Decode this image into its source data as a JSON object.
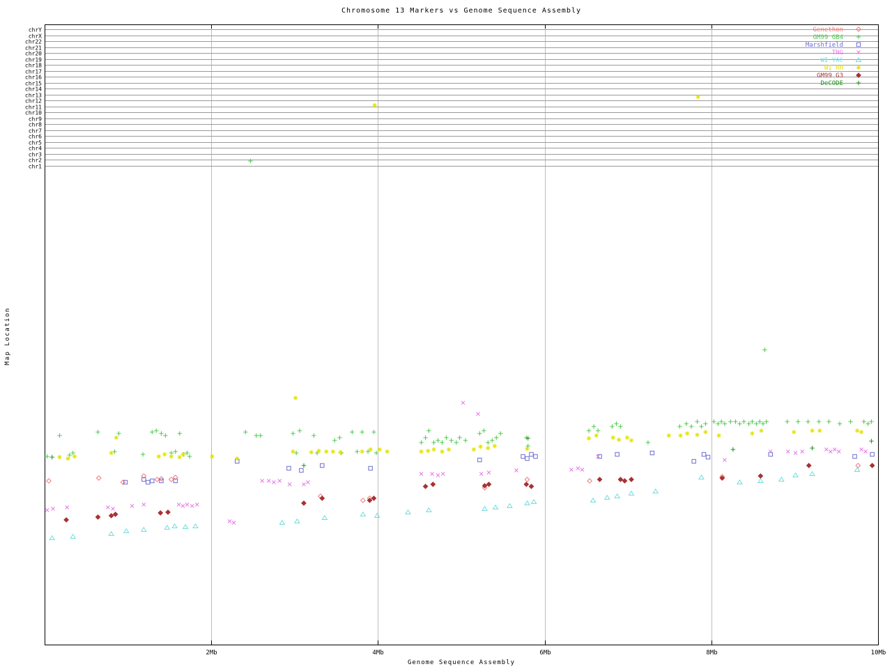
{
  "chart_data": {
    "type": "scatter",
    "title": "Chromosome 13 Markers vs Genome Sequence Assembly",
    "xlabel": "Genome Sequence Assembly",
    "ylabel": "Map Location",
    "xlim": [
      0,
      10
    ],
    "x_ticks": [
      {
        "value": 2,
        "label": "2Mb"
      },
      {
        "value": 4,
        "label": "4Mb"
      },
      {
        "value": 6,
        "label": "6Mb"
      },
      {
        "value": 8,
        "label": "8Mb"
      },
      {
        "value": 10,
        "label": "10Mb"
      }
    ],
    "grid": true,
    "legend_position": "top-right-inside",
    "y_axis": {
      "note": "Map Location axis has no numeric tick labels; chromosome rows chr1..chrY are drawn as horizontal lines at the top of the plot. Point y values are vertical positions on the original 960px-tall screenshot.",
      "chromosome_rows": [
        "chr1",
        "chr2",
        "chr3",
        "chr4",
        "chr5",
        "chr6",
        "chr7",
        "chr8",
        "chr9",
        "chr10",
        "chr11",
        "chr12",
        "chr13",
        "chr14",
        "chr15",
        "chr16",
        "chr17",
        "chr18",
        "chr19",
        "chr20",
        "chr21",
        "chr22",
        "chrX",
        "chrY"
      ]
    },
    "series": [
      {
        "name": "Genethon",
        "marker": "open-diamond",
        "color": "#ee7777",
        "points": [
          [
            0.05,
            690
          ],
          [
            0.65,
            686
          ],
          [
            0.94,
            692
          ],
          [
            1.19,
            683
          ],
          [
            1.35,
            688
          ],
          [
            1.4,
            687
          ],
          [
            1.52,
            688
          ],
          [
            1.57,
            685
          ],
          [
            3.31,
            712
          ],
          [
            3.82,
            718
          ],
          [
            3.9,
            715
          ],
          [
            5.28,
            700
          ],
          [
            5.79,
            688
          ],
          [
            6.54,
            690
          ],
          [
            8.13,
            684
          ],
          [
            9.76,
            668
          ]
        ]
      },
      {
        "name": "GM99 GB4",
        "marker": "plus",
        "color": "#4dc84d",
        "points": [
          [
            0.03,
            655
          ],
          [
            0.18,
            625
          ],
          [
            0.3,
            653
          ],
          [
            0.34,
            650
          ],
          [
            0.64,
            620
          ],
          [
            0.84,
            648
          ],
          [
            0.89,
            622
          ],
          [
            1.18,
            652
          ],
          [
            1.29,
            620
          ],
          [
            1.34,
            618
          ],
          [
            1.4,
            622
          ],
          [
            1.45,
            625
          ],
          [
            1.52,
            650
          ],
          [
            1.57,
            648
          ],
          [
            1.62,
            622
          ],
          [
            1.67,
            652
          ],
          [
            1.71,
            650
          ],
          [
            1.74,
            655
          ],
          [
            2.41,
            620
          ],
          [
            2.47,
            231
          ],
          [
            2.54,
            625
          ],
          [
            2.59,
            625
          ],
          [
            2.98,
            622
          ],
          [
            3.02,
            650
          ],
          [
            3.06,
            618
          ],
          [
            3.23,
            625
          ],
          [
            3.27,
            650
          ],
          [
            3.48,
            632
          ],
          [
            3.54,
            628
          ],
          [
            3.56,
            650
          ],
          [
            3.69,
            620
          ],
          [
            3.75,
            648
          ],
          [
            3.81,
            620
          ],
          [
            3.88,
            648
          ],
          [
            3.95,
            620
          ],
          [
            3.98,
            650
          ],
          [
            4.52,
            635
          ],
          [
            4.57,
            628
          ],
          [
            4.61,
            618
          ],
          [
            4.67,
            635
          ],
          [
            4.72,
            632
          ],
          [
            4.77,
            635
          ],
          [
            4.82,
            628
          ],
          [
            4.88,
            632
          ],
          [
            4.94,
            635
          ],
          [
            4.98,
            628
          ],
          [
            5.05,
            632
          ],
          [
            5.22,
            622
          ],
          [
            5.27,
            618
          ],
          [
            5.32,
            635
          ],
          [
            5.37,
            632
          ],
          [
            5.42,
            628
          ],
          [
            5.47,
            622
          ],
          [
            5.78,
            628
          ],
          [
            5.8,
            640
          ],
          [
            6.53,
            618
          ],
          [
            6.59,
            612
          ],
          [
            6.64,
            618
          ],
          [
            6.81,
            612
          ],
          [
            6.86,
            608
          ],
          [
            6.91,
            612
          ],
          [
            7.24,
            635
          ],
          [
            7.62,
            612
          ],
          [
            7.7,
            608
          ],
          [
            7.76,
            612
          ],
          [
            7.83,
            605
          ],
          [
            7.88,
            612
          ],
          [
            7.93,
            608
          ],
          [
            8.03,
            605
          ],
          [
            8.08,
            608
          ],
          [
            8.12,
            605
          ],
          [
            8.16,
            608
          ],
          [
            8.23,
            605
          ],
          [
            8.29,
            605
          ],
          [
            8.34,
            608
          ],
          [
            8.39,
            605
          ],
          [
            8.45,
            608
          ],
          [
            8.49,
            605
          ],
          [
            8.54,
            608
          ],
          [
            8.58,
            605
          ],
          [
            8.62,
            608
          ],
          [
            8.64,
            502
          ],
          [
            8.66,
            605
          ],
          [
            8.91,
            605
          ],
          [
            9.04,
            605
          ],
          [
            9.16,
            605
          ],
          [
            9.29,
            605
          ],
          [
            9.41,
            605
          ],
          [
            9.54,
            608
          ],
          [
            9.67,
            605
          ],
          [
            9.83,
            605
          ],
          [
            9.88,
            608
          ],
          [
            9.92,
            605
          ]
        ]
      },
      {
        "name": "Marshfield",
        "marker": "open-square",
        "color": "#6b6bd0",
        "points": [
          [
            0.97,
            692
          ],
          [
            1.19,
            688
          ],
          [
            1.24,
            692
          ],
          [
            1.29,
            690
          ],
          [
            1.4,
            690
          ],
          [
            1.57,
            690
          ],
          [
            2.31,
            662
          ],
          [
            2.93,
            672
          ],
          [
            3.08,
            675
          ],
          [
            3.33,
            668
          ],
          [
            3.91,
            672
          ],
          [
            5.22,
            660
          ],
          [
            5.74,
            655
          ],
          [
            5.79,
            658
          ],
          [
            5.84,
            652
          ],
          [
            5.89,
            655
          ],
          [
            6.66,
            655
          ],
          [
            6.87,
            652
          ],
          [
            7.29,
            650
          ],
          [
            7.79,
            662
          ],
          [
            7.91,
            652
          ],
          [
            7.96,
            656
          ],
          [
            8.71,
            652
          ],
          [
            9.72,
            655
          ],
          [
            9.93,
            652
          ]
        ]
      },
      {
        "name": "TNG",
        "marker": "cross",
        "color": "#e878e8",
        "points": [
          [
            0.03,
            732
          ],
          [
            0.1,
            730
          ],
          [
            0.27,
            728
          ],
          [
            0.76,
            728
          ],
          [
            0.82,
            730
          ],
          [
            1.05,
            726
          ],
          [
            1.19,
            724
          ],
          [
            1.61,
            724
          ],
          [
            1.66,
            726
          ],
          [
            1.71,
            724
          ],
          [
            1.77,
            726
          ],
          [
            1.83,
            724
          ],
          [
            2.22,
            748
          ],
          [
            2.27,
            750
          ],
          [
            2.61,
            690
          ],
          [
            2.69,
            690
          ],
          [
            2.75,
            692
          ],
          [
            2.82,
            690
          ],
          [
            2.94,
            695
          ],
          [
            3.11,
            695
          ],
          [
            3.16,
            692
          ],
          [
            4.52,
            680
          ],
          [
            4.65,
            680
          ],
          [
            4.72,
            682
          ],
          [
            4.78,
            680
          ],
          [
            5.02,
            578
          ],
          [
            5.2,
            594
          ],
          [
            5.24,
            680
          ],
          [
            5.33,
            678
          ],
          [
            5.66,
            675
          ],
          [
            6.32,
            674
          ],
          [
            6.4,
            672
          ],
          [
            6.45,
            674
          ],
          [
            6.64,
            655
          ],
          [
            8.16,
            660
          ],
          [
            8.71,
            648
          ],
          [
            8.92,
            648
          ],
          [
            9.01,
            650
          ],
          [
            9.09,
            648
          ],
          [
            9.38,
            645
          ],
          [
            9.43,
            648
          ],
          [
            9.48,
            645
          ],
          [
            9.53,
            648
          ],
          [
            9.8,
            645
          ],
          [
            9.85,
            648
          ]
        ]
      },
      {
        "name": "WI YAC",
        "marker": "open-triangle",
        "color": "#70dede",
        "points": [
          [
            0.09,
            772
          ],
          [
            0.34,
            770
          ],
          [
            0.8,
            766
          ],
          [
            0.98,
            762
          ],
          [
            1.19,
            760
          ],
          [
            1.47,
            757
          ],
          [
            1.56,
            755
          ],
          [
            1.69,
            756
          ],
          [
            1.81,
            755
          ],
          [
            2.85,
            750
          ],
          [
            3.03,
            748
          ],
          [
            3.36,
            743
          ],
          [
            3.82,
            738
          ],
          [
            3.99,
            740
          ],
          [
            4.36,
            735
          ],
          [
            4.61,
            732
          ],
          [
            5.28,
            730
          ],
          [
            5.41,
            728
          ],
          [
            5.58,
            726
          ],
          [
            5.79,
            722
          ],
          [
            5.87,
            720
          ],
          [
            6.58,
            718
          ],
          [
            6.75,
            714
          ],
          [
            6.87,
            712
          ],
          [
            7.04,
            708
          ],
          [
            7.33,
            705
          ],
          [
            7.88,
            685
          ],
          [
            8.34,
            692
          ],
          [
            8.59,
            690
          ],
          [
            8.84,
            688
          ],
          [
            9.01,
            682
          ],
          [
            9.21,
            680
          ],
          [
            9.75,
            674
          ]
        ]
      },
      {
        "name": "WI RH",
        "marker": "asterisk",
        "color": "#e3e300",
        "points": [
          [
            0.18,
            656
          ],
          [
            0.28,
            658
          ],
          [
            0.36,
            655
          ],
          [
            0.8,
            650
          ],
          [
            0.86,
            628
          ],
          [
            1.37,
            655
          ],
          [
            1.44,
            652
          ],
          [
            1.52,
            655
          ],
          [
            1.62,
            656
          ],
          [
            1.66,
            652
          ],
          [
            2.01,
            655
          ],
          [
            2.31,
            658
          ],
          [
            2.98,
            648
          ],
          [
            3.01,
            571
          ],
          [
            3.2,
            649
          ],
          [
            3.29,
            647
          ],
          [
            3.38,
            648
          ],
          [
            3.46,
            648
          ],
          [
            3.55,
            649
          ],
          [
            3.81,
            648
          ],
          [
            3.91,
            645
          ],
          [
            3.96,
            151
          ],
          [
            4.02,
            645
          ],
          [
            4.11,
            648
          ],
          [
            4.52,
            648
          ],
          [
            4.6,
            647
          ],
          [
            4.67,
            645
          ],
          [
            4.77,
            648
          ],
          [
            4.85,
            645
          ],
          [
            5.15,
            645
          ],
          [
            5.23,
            641
          ],
          [
            5.32,
            643
          ],
          [
            5.4,
            640
          ],
          [
            5.79,
            644
          ],
          [
            6.53,
            629
          ],
          [
            6.62,
            625
          ],
          [
            6.82,
            628
          ],
          [
            6.89,
            631
          ],
          [
            6.99,
            628
          ],
          [
            7.04,
            632
          ],
          [
            7.49,
            625
          ],
          [
            7.63,
            625
          ],
          [
            7.71,
            622
          ],
          [
            7.83,
            624
          ],
          [
            7.84,
            139
          ],
          [
            7.93,
            620
          ],
          [
            8.09,
            625
          ],
          [
            8.49,
            622
          ],
          [
            8.6,
            618
          ],
          [
            8.99,
            620
          ],
          [
            9.21,
            618
          ],
          [
            9.3,
            618
          ],
          [
            9.75,
            618
          ],
          [
            9.8,
            620
          ]
        ]
      },
      {
        "name": "GM99 G3",
        "marker": "filled-diamond",
        "color": "#a83232",
        "points": [
          [
            0.26,
            746
          ],
          [
            0.64,
            742
          ],
          [
            0.8,
            740
          ],
          [
            0.85,
            738
          ],
          [
            1.39,
            736
          ],
          [
            1.48,
            735
          ],
          [
            3.11,
            722
          ],
          [
            3.33,
            715
          ],
          [
            3.9,
            718
          ],
          [
            3.95,
            715
          ],
          [
            4.57,
            698
          ],
          [
            4.66,
            695
          ],
          [
            5.28,
            697
          ],
          [
            5.33,
            695
          ],
          [
            5.78,
            695
          ],
          [
            5.84,
            698
          ],
          [
            6.66,
            688
          ],
          [
            6.91,
            688
          ],
          [
            6.96,
            690
          ],
          [
            7.04,
            688
          ],
          [
            8.13,
            686
          ],
          [
            8.59,
            683
          ],
          [
            9.17,
            668
          ],
          [
            9.93,
            668
          ]
        ]
      },
      {
        "name": "DeCODE",
        "marker": "plus",
        "color": "#1e8c1e",
        "points": [
          [
            0.09,
            656
          ],
          [
            3.11,
            668
          ],
          [
            5.8,
            629
          ],
          [
            8.26,
            645
          ],
          [
            9.21,
            643
          ],
          [
            9.92,
            633
          ]
        ]
      }
    ]
  }
}
